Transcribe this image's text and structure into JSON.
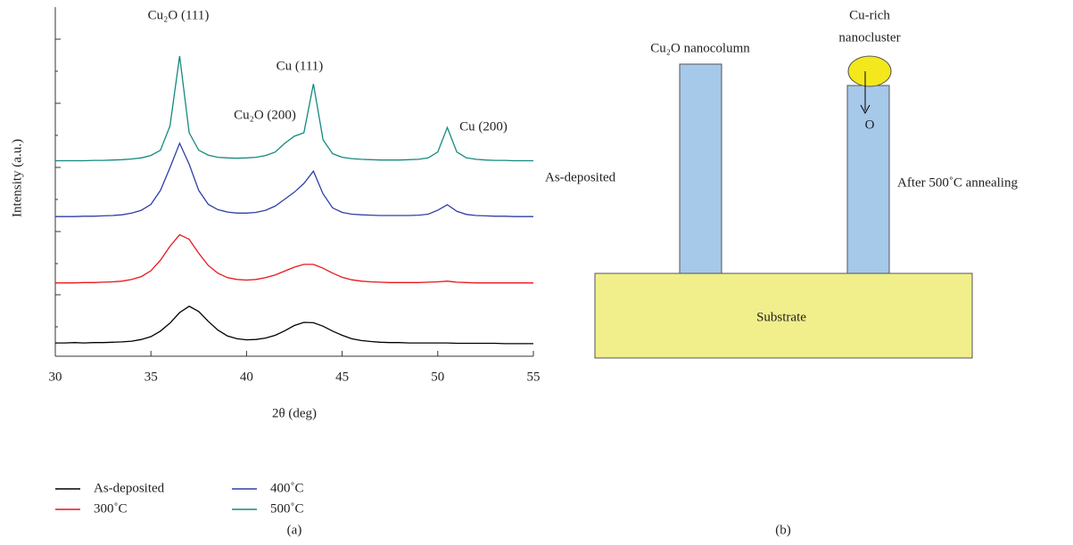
{
  "chart_data": {
    "type": "line",
    "xlabel": "2θ (deg)",
    "ylabel": "Intensity (a.u.)",
    "panel_label": "(a)",
    "annotations": [
      "Cu₂O (111)",
      "Cu (111)",
      "Cu₂O (200)",
      "Cu (200)"
    ],
    "xlim": [
      30,
      55
    ],
    "xticks": [
      30,
      35,
      40,
      45,
      50,
      55
    ],
    "ylim": [
      0,
      100
    ],
    "x": [
      30,
      30.5,
      31,
      31.5,
      32,
      32.5,
      33,
      33.5,
      34,
      34.5,
      35,
      35.5,
      36,
      36.5,
      37,
      37.5,
      38,
      38.5,
      39,
      39.5,
      40,
      40.5,
      41,
      41.5,
      42,
      42.5,
      43,
      43.5,
      44,
      44.5,
      45,
      45.5,
      46,
      46.5,
      47,
      47.5,
      48,
      48.5,
      49,
      49.5,
      50,
      50.5,
      51,
      51.5,
      52,
      52.5,
      53,
      53.5,
      54,
      54.5,
      55
    ],
    "series": [
      {
        "name": "As-deposited",
        "color": "#000000",
        "values": [
          3.8,
          3.8,
          3.9,
          3.8,
          3.9,
          3.9,
          4.0,
          4.1,
          4.3,
          4.8,
          5.6,
          7.2,
          9.5,
          12.5,
          14.3,
          12.8,
          10,
          7.5,
          5.8,
          5.0,
          4.7,
          4.8,
          5.2,
          6.0,
          7.3,
          8.8,
          9.7,
          9.6,
          8.6,
          7.2,
          6.0,
          5.0,
          4.5,
          4.2,
          4.0,
          3.9,
          3.9,
          3.8,
          3.8,
          3.8,
          3.8,
          3.8,
          3.7,
          3.7,
          3.7,
          3.7,
          3.7,
          3.6,
          3.6,
          3.6,
          3.6
        ]
      },
      {
        "name": "300˚C",
        "color": "#e8161b",
        "values": [
          21,
          21,
          21,
          21.1,
          21.1,
          21.2,
          21.3,
          21.5,
          22,
          22.8,
          24.5,
          27.5,
          31.5,
          34.8,
          33.5,
          29.5,
          26,
          23.8,
          22.5,
          22,
          21.8,
          22,
          22.5,
          23.3,
          24.4,
          25.5,
          26.3,
          26.3,
          25.2,
          23.8,
          22.6,
          21.9,
          21.5,
          21.3,
          21.2,
          21.1,
          21.1,
          21.1,
          21.1,
          21.2,
          21.3,
          21.5,
          21.2,
          21.1,
          21,
          21,
          21,
          21,
          21,
          21,
          21
        ]
      },
      {
        "name": "400˚C",
        "color": "#2f3fa6",
        "values": [
          40,
          40,
          40,
          40.1,
          40.1,
          40.2,
          40.3,
          40.5,
          41,
          41.8,
          43.5,
          47.5,
          54,
          61,
          55,
          47.5,
          43.5,
          42,
          41.3,
          41,
          41,
          41.2,
          41.8,
          43,
          45,
          47,
          49.5,
          53,
          46.5,
          42.5,
          41.2,
          40.7,
          40.5,
          40.4,
          40.3,
          40.3,
          40.3,
          40.3,
          40.4,
          40.7,
          41.8,
          43.4,
          41.5,
          40.6,
          40.3,
          40.2,
          40.1,
          40.1,
          40,
          40,
          40
        ]
      },
      {
        "name": "500˚C",
        "color": "#138a7e",
        "values": [
          56,
          56,
          56,
          56,
          56.1,
          56.1,
          56.2,
          56.3,
          56.5,
          56.8,
          57.5,
          59,
          66,
          86,
          64,
          59,
          57.6,
          57,
          56.8,
          56.7,
          56.8,
          57,
          57.5,
          58.5,
          61,
          63,
          64,
          78,
          62,
          58,
          57,
          56.6,
          56.4,
          56.3,
          56.2,
          56.2,
          56.2,
          56.3,
          56.4,
          56.8,
          58.5,
          65.5,
          58.5,
          56.8,
          56.4,
          56.2,
          56.1,
          56.1,
          56,
          56,
          56
        ]
      }
    ]
  },
  "diagram": {
    "panel_label": "(b)",
    "substrate": "Substrate",
    "column_label": "Cu₂O nanocolumn",
    "cluster_label_1": "Cu-rich",
    "cluster_label_2": "nanocluster",
    "oxygen": "O",
    "left_caption": "As-deposited",
    "right_caption": "After 500˚C annealing"
  }
}
